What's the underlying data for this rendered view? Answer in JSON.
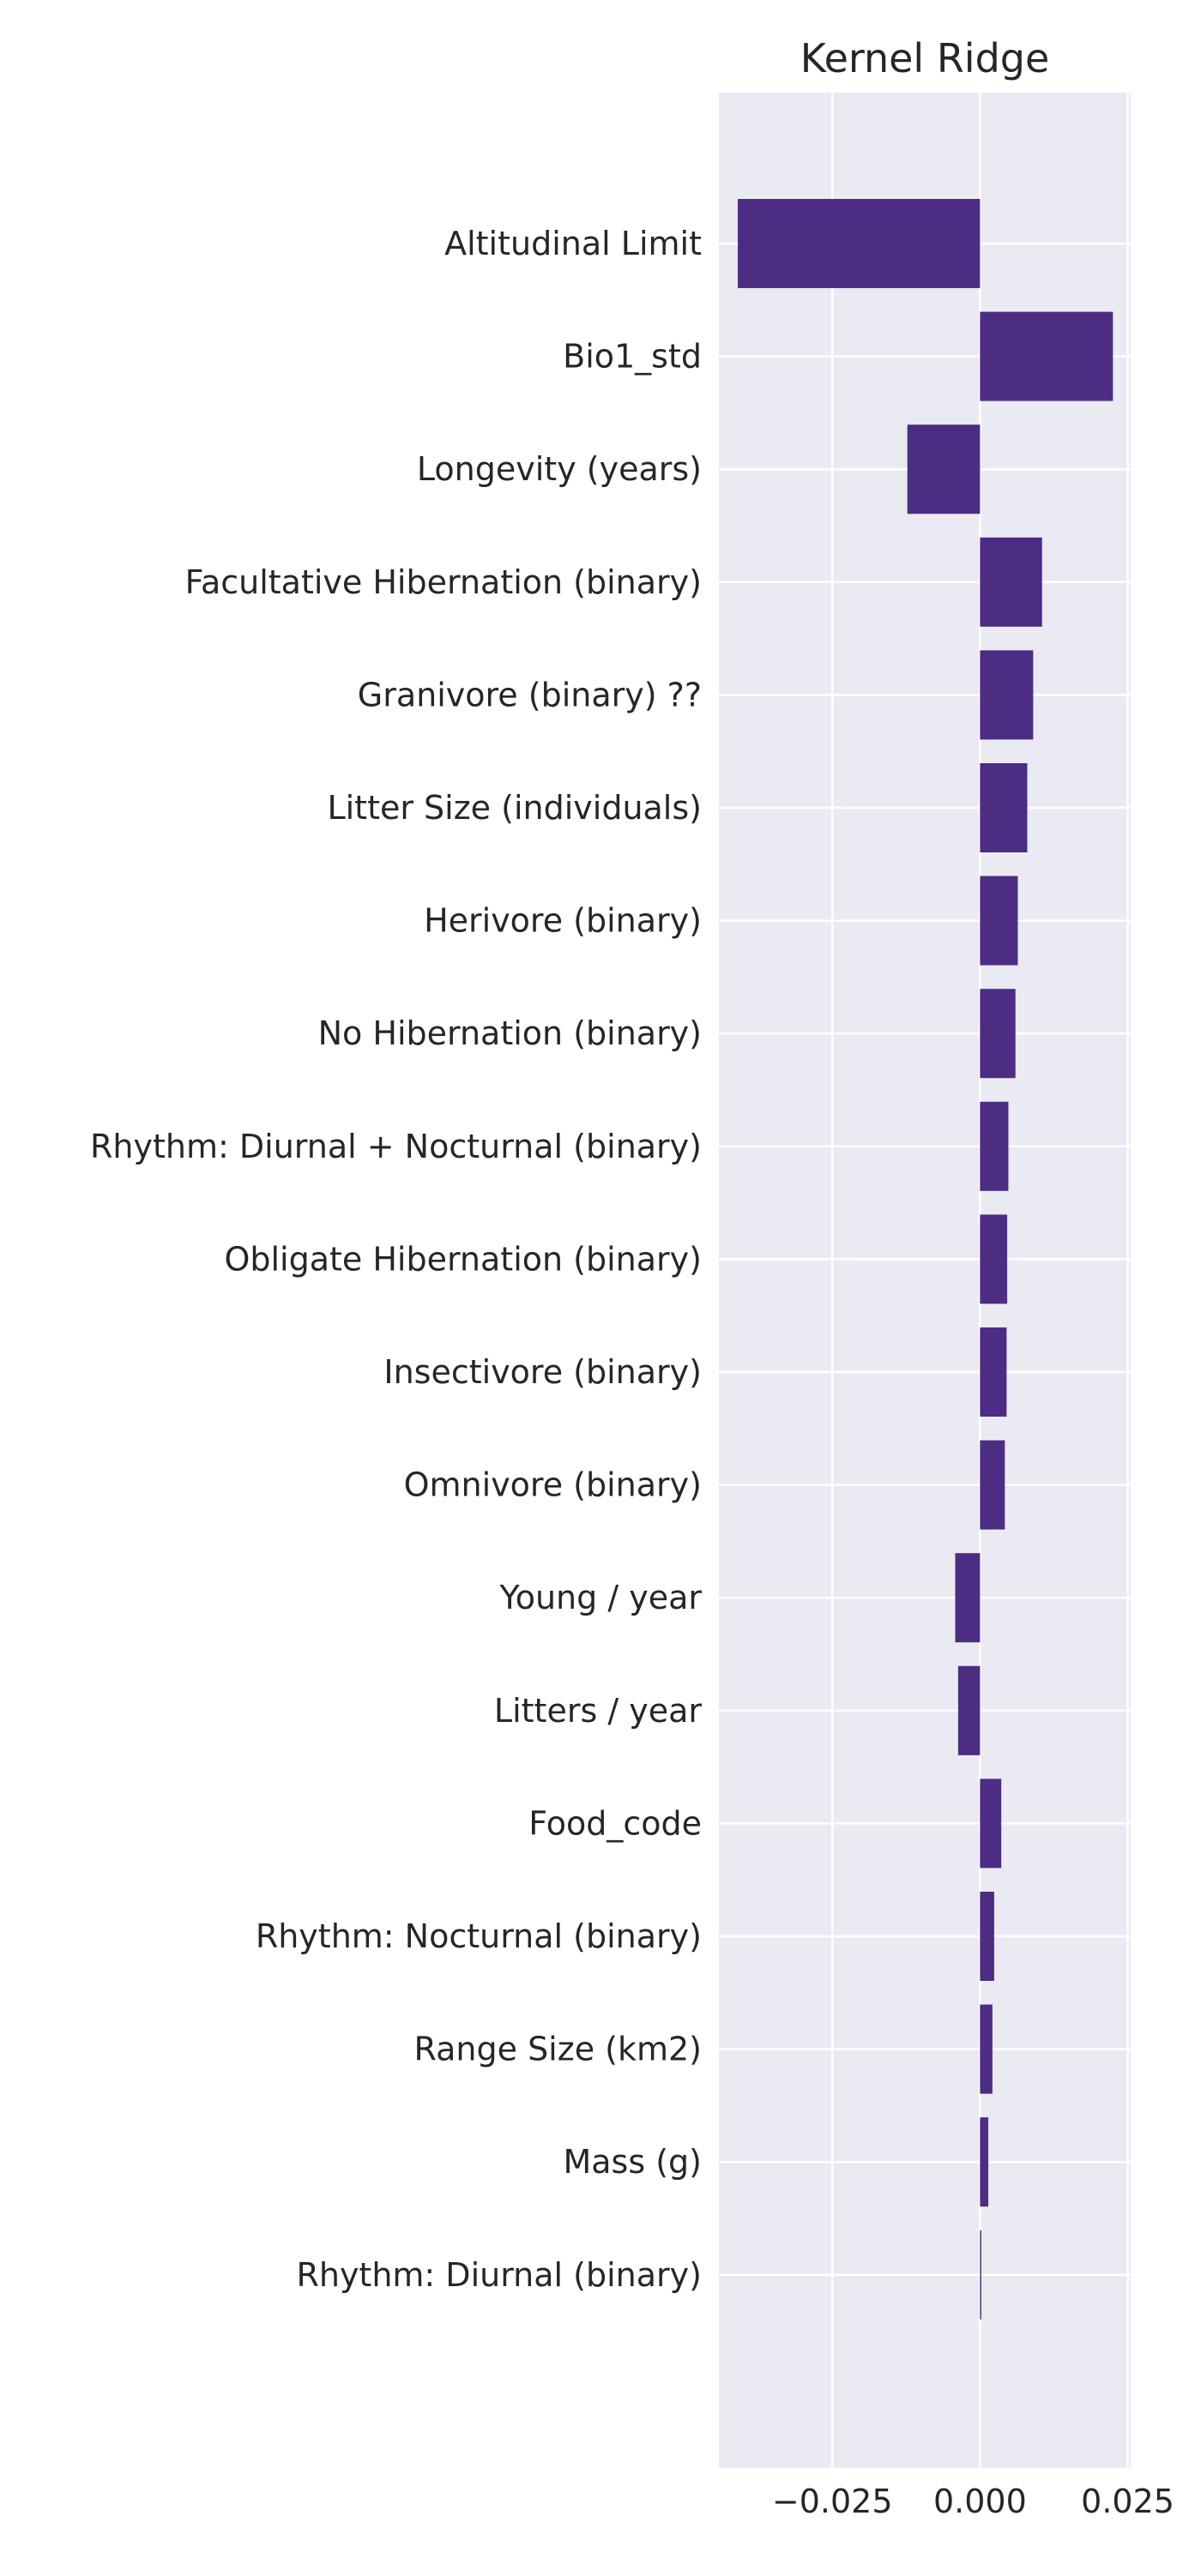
{
  "chart_data": {
    "type": "bar",
    "orientation": "horizontal",
    "title": "Kernel Ridge",
    "xlabel": "",
    "ylabel": "",
    "categories": [
      "Altitudinal Limit",
      "Bio1_std",
      "Longevity (years)",
      "Facultative Hibernation (binary) ",
      "Granivore (binary) ??",
      "Litter Size (individuals)",
      "Herivore (binary)",
      "No Hibernation (binary)",
      "Rhythm: Diurnal + Nocturnal (binary)",
      "Obligate Hibernation (binary)",
      "Insectivore (binary)",
      "Omnivore (binary)",
      "Young / year",
      "Litters / year",
      "Food_code",
      "Rhythm: Nocturnal (binary)",
      "Range Size (km2)",
      "Mass (g)",
      "Rhythm: Diurnal (binary)"
    ],
    "values": [
      -0.041,
      0.0225,
      -0.0123,
      0.0105,
      0.009,
      0.008,
      0.0064,
      0.006,
      0.0048,
      0.0046,
      0.0045,
      0.0042,
      -0.0042,
      -0.0037,
      0.0036,
      0.0024,
      0.0021,
      0.0014,
      0.0002
    ],
    "xlim": [
      -0.0442,
      0.0255
    ],
    "xticks": [
      -0.025,
      0.0,
      0.025
    ],
    "xtick_labels": [
      "−0.025",
      "0.000",
      "0.025"
    ],
    "grid": true,
    "bar_color": "#4c2d83",
    "background_color": "#eaeaf2",
    "grid_color": "#ffffff"
  }
}
